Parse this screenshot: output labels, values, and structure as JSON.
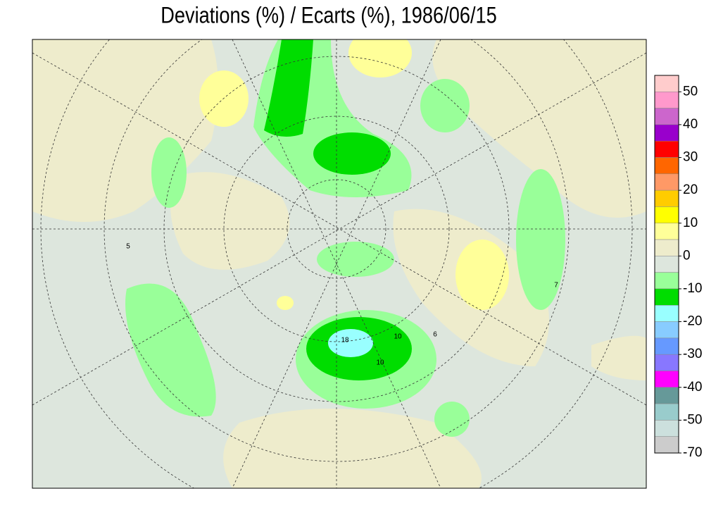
{
  "title": "Deviations (%) / Ecarts (%), 1986/06/15",
  "colorbar": {
    "colors": [
      "#ffcccc",
      "#ff99cc",
      "#cc66cc",
      "#9900cc",
      "#ff0000",
      "#ff6600",
      "#ff9966",
      "#ffcc00",
      "#ffff00",
      "#ffff99",
      "#eeeccc",
      "#dde6dd",
      "#99ff99",
      "#00dd00",
      "#99ffff",
      "#88ccff",
      "#6699ff",
      "#8877ff",
      "#ff00ff",
      "#669999",
      "#99cccc",
      "#cce0dd",
      "#cccccc"
    ],
    "ticks": [
      50,
      40,
      30,
      20,
      10,
      0,
      -10,
      -20,
      -30,
      -40,
      -50,
      -70
    ]
  },
  "map": {
    "labels": [
      "18",
      "10",
      "10",
      "6",
      "5",
      "7"
    ]
  }
}
